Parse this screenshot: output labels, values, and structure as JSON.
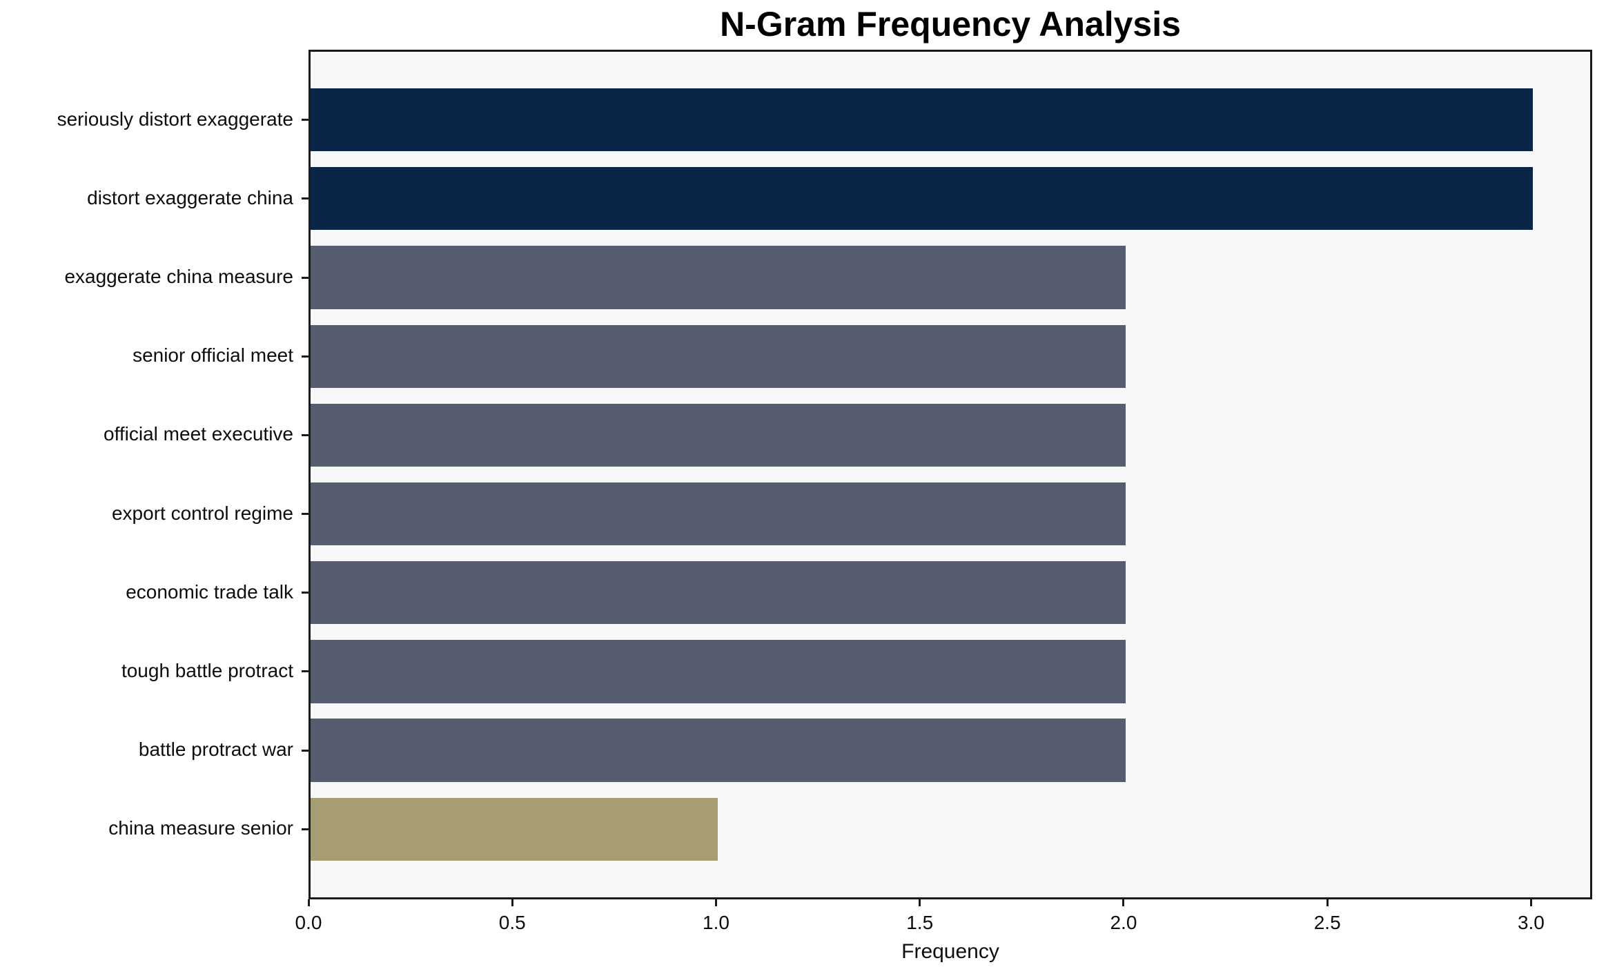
{
  "chart_data": {
    "type": "bar",
    "orientation": "horizontal",
    "title": "N-Gram Frequency Analysis",
    "xlabel": "Frequency",
    "ylabel": "",
    "categories": [
      "seriously distort exaggerate",
      "distort exaggerate china",
      "exaggerate china measure",
      "senior official meet",
      "official meet executive",
      "export control regime",
      "economic trade talk",
      "tough battle protract",
      "battle protract war",
      "china measure senior"
    ],
    "values": [
      3,
      3,
      2,
      2,
      2,
      2,
      2,
      2,
      2,
      1
    ],
    "bar_colors": [
      "#0b2548",
      "#0b2548",
      "#565d6e",
      "#565d6e",
      "#565d6e",
      "#565d6e",
      "#565d6e",
      "#565d6e",
      "#565d6e",
      "#a69d73"
    ],
    "xlim": [
      0,
      3.15
    ],
    "xticks": [
      0.0,
      0.5,
      1.0,
      1.5,
      2.0,
      2.5,
      3.0
    ],
    "xtick_labels": [
      "0.0",
      "0.5",
      "1.0",
      "1.5",
      "2.0",
      "2.5",
      "3.0"
    ],
    "grid": false,
    "legend": null,
    "colors": {
      "bar_high": "#0b2548",
      "bar_mid": "#565d6e",
      "bar_low": "#a69d73",
      "plot_background": "#f7f7f7",
      "figure_background": "#ffffff",
      "spine": "#1a1a1a",
      "text": "#0d0d0d"
    }
  }
}
